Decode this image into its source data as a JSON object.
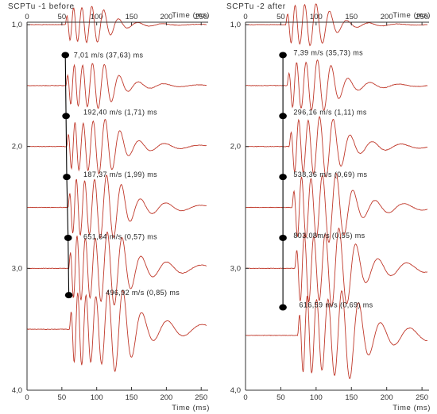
{
  "chart_data": [
    {
      "type": "line",
      "title": "SCPTu -1 before",
      "xlabel": "Time (ms)",
      "x_ticks": [
        "0",
        "50",
        "100",
        "150",
        "200",
        "250"
      ],
      "xlim": [
        0,
        260
      ],
      "y_ticks": [
        "1,0",
        "2,0",
        "3,0",
        "4,0"
      ],
      "ylim": [
        0.98,
        4.0
      ],
      "trace_depths": [
        1.0,
        1.5,
        2.0,
        2.5,
        3.0,
        3.5
      ],
      "trace_color": "#c0392b",
      "arrival_times": [
        55,
        56,
        57,
        59,
        60,
        61
      ],
      "marker_points": [
        {
          "time": 55,
          "depth": 1.25
        },
        {
          "time": 56,
          "depth": 1.75
        },
        {
          "time": 57,
          "depth": 2.25
        },
        {
          "time": 59,
          "depth": 2.75
        },
        {
          "time": 60,
          "depth": 3.22
        }
      ],
      "annotations": [
        {
          "text": "7,01 m/s (37,63) ms",
          "time": 67,
          "depth": 1.25
        },
        {
          "text": "192,40 m/s (1,71) ms",
          "time": 81,
          "depth": 1.72
        },
        {
          "text": "187,37 m/s (1,99) ms",
          "time": 81,
          "depth": 2.23
        },
        {
          "text": "651,64 m/s (0,57) ms",
          "time": 81,
          "depth": 2.74
        },
        {
          "text": "496,92 m/s (0,85) ms",
          "time": 113,
          "depth": 3.2
        }
      ]
    },
    {
      "type": "line",
      "title": "SCPTu -2 after",
      "xlabel": "Time (ms)",
      "x_ticks": [
        "0",
        "50",
        "100",
        "150",
        "200",
        "250"
      ],
      "xlim": [
        0,
        260
      ],
      "y_ticks": [
        "1,0",
        "2,0",
        "3,0",
        "4,0"
      ],
      "ylim": [
        0.98,
        4.0
      ],
      "trace_depths": [
        1.0,
        1.5,
        2.0,
        2.5,
        3.0,
        3.55
      ],
      "trace_color": "#c0392b",
      "arrival_times": [
        57,
        59,
        62,
        66,
        70,
        74
      ],
      "marker_points": [
        {
          "time": 53,
          "depth": 1.25
        },
        {
          "time": 53,
          "depth": 1.75
        },
        {
          "time": 53,
          "depth": 2.25
        },
        {
          "time": 53,
          "depth": 2.75
        },
        {
          "time": 53,
          "depth": 3.32
        }
      ],
      "annotations": [
        {
          "text": "7,39 m/s (35,73) ms",
          "time": 68,
          "depth": 1.23
        },
        {
          "text": "296,16 m/s (1,11) ms",
          "time": 68,
          "depth": 1.72
        },
        {
          "text": "538,36 m/s (0,69) ms",
          "time": 68,
          "depth": 2.23
        },
        {
          "text": "803,08m/s (0,55) ms",
          "time": 68,
          "depth": 2.73
        },
        {
          "text": "616,59 m/s (0,69) ms",
          "time": 76,
          "depth": 3.3
        }
      ]
    }
  ]
}
